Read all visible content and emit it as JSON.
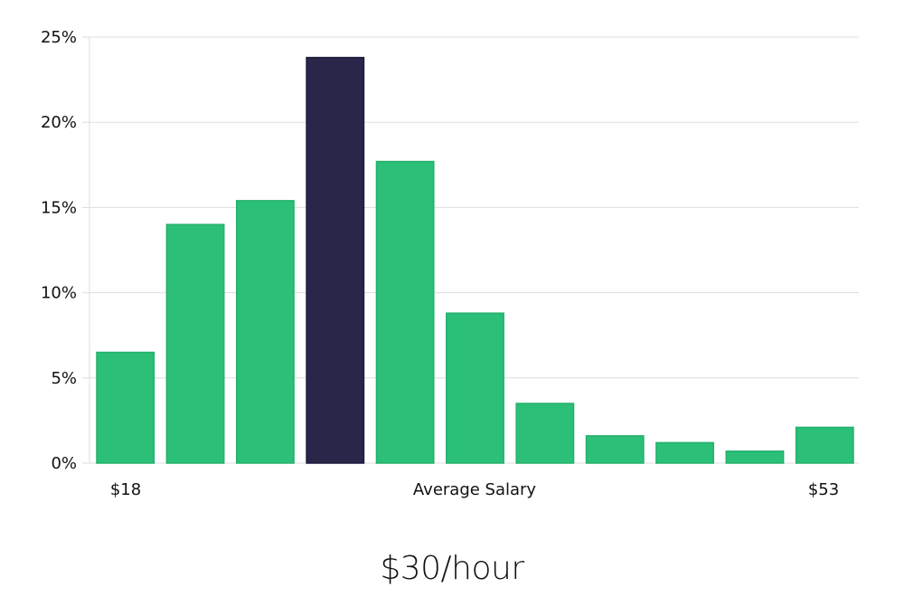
{
  "chart_data": {
    "type": "bar",
    "title": "$30/hour",
    "xlabel": "Average Salary",
    "x_tick_labels": {
      "first": "$18",
      "last": "$53"
    },
    "ylim": [
      0,
      25
    ],
    "y_ticks": [
      0,
      5,
      10,
      15,
      20,
      25
    ],
    "y_tick_format": "%",
    "grid": true,
    "values": [
      6.5,
      14.0,
      15.4,
      23.8,
      17.7,
      8.8,
      3.5,
      1.6,
      1.2,
      0.7,
      2.1
    ],
    "highlight_index": 3,
    "colors": {
      "bar": "#2bbf77",
      "highlight": "#29264a",
      "grid": "#dddddd"
    }
  }
}
